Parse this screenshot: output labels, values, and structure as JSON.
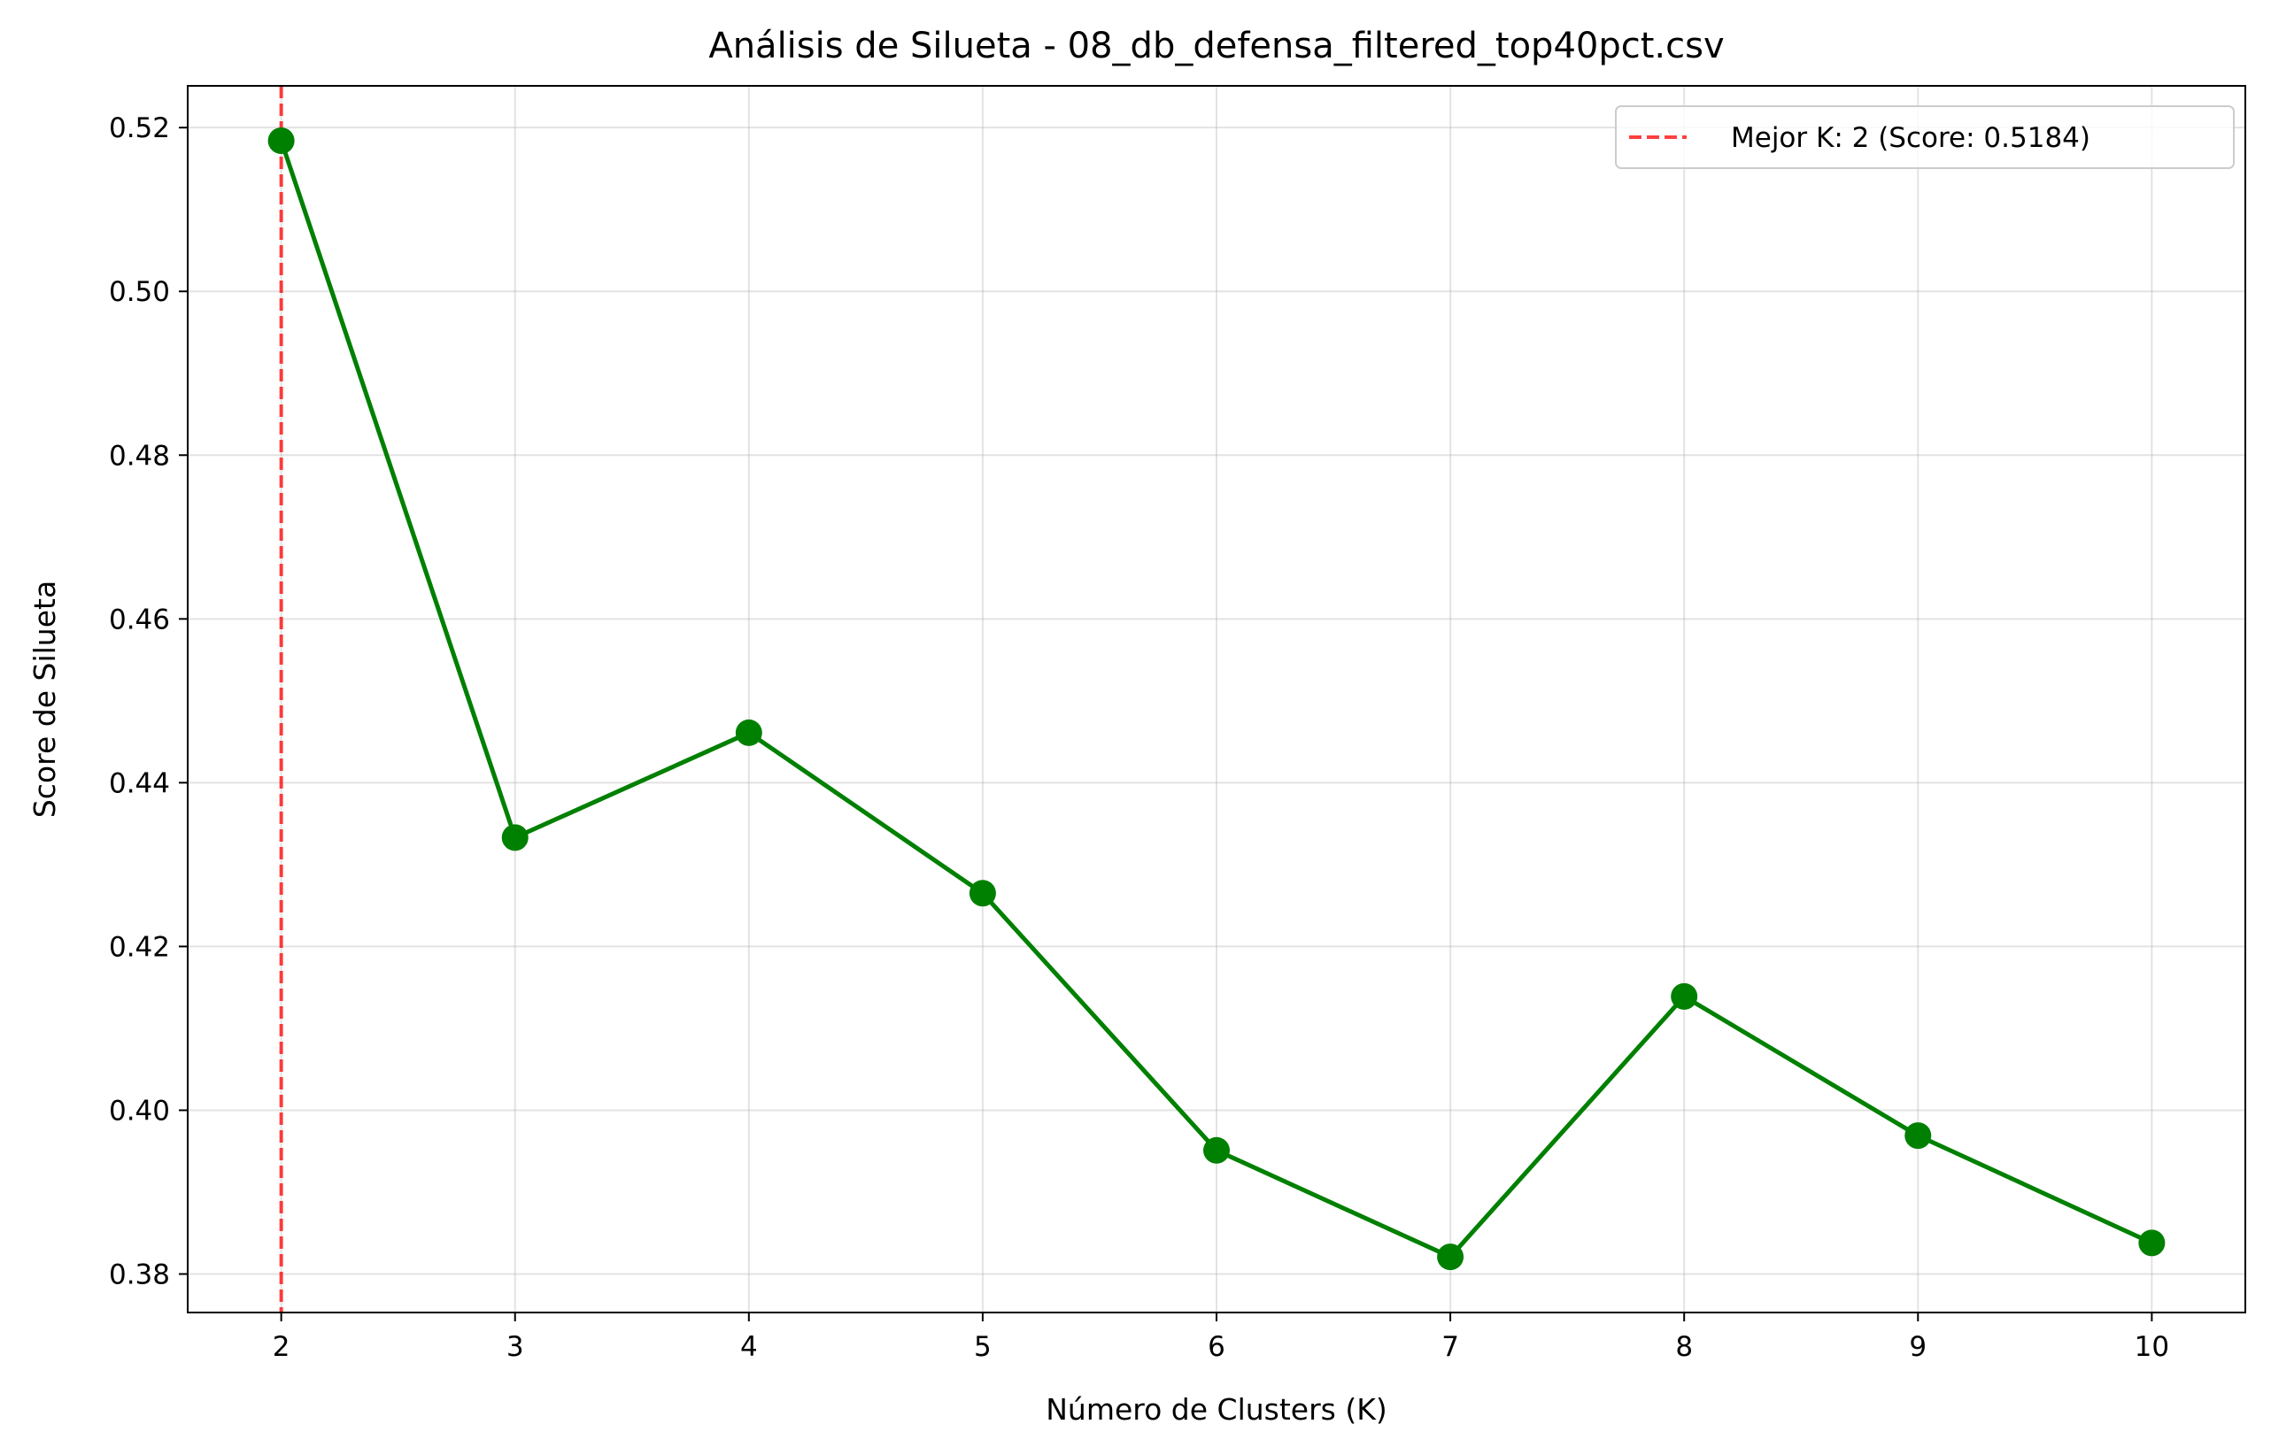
{
  "chart_data": {
    "type": "line",
    "title": "Análisis de Silueta - 08_db_defensa_filtered_top40pct.csv",
    "xlabel": "Número de Clusters (K)",
    "ylabel": "Score de Silueta",
    "x": [
      2,
      3,
      4,
      5,
      6,
      7,
      8,
      9,
      10
    ],
    "series": [
      {
        "values": [
          0.5184,
          0.4333,
          0.4461,
          0.4265,
          0.3951,
          0.3821,
          0.4139,
          0.3969,
          0.3838
        ],
        "color": "#008000",
        "marker": "circle"
      }
    ],
    "xlim": [
      1.6,
      10.4
    ],
    "ylim": [
      0.3753,
      0.5251
    ],
    "x_ticks": [
      "2",
      "3",
      "4",
      "5",
      "6",
      "7",
      "8",
      "9",
      "10"
    ],
    "y_ticks": [
      "0.38",
      "0.40",
      "0.42",
      "0.44",
      "0.46",
      "0.48",
      "0.50",
      "0.52"
    ],
    "reference_line": {
      "orientation": "vertical",
      "x": 2,
      "style": "dashed",
      "color": "#ff0000",
      "label": "Mejor K: 2 (Score: 0.5184)"
    },
    "legend": {
      "placement": "top-right",
      "entries": [
        "Mejor K: 2 (Score: 0.5184)"
      ]
    },
    "grid": true
  }
}
